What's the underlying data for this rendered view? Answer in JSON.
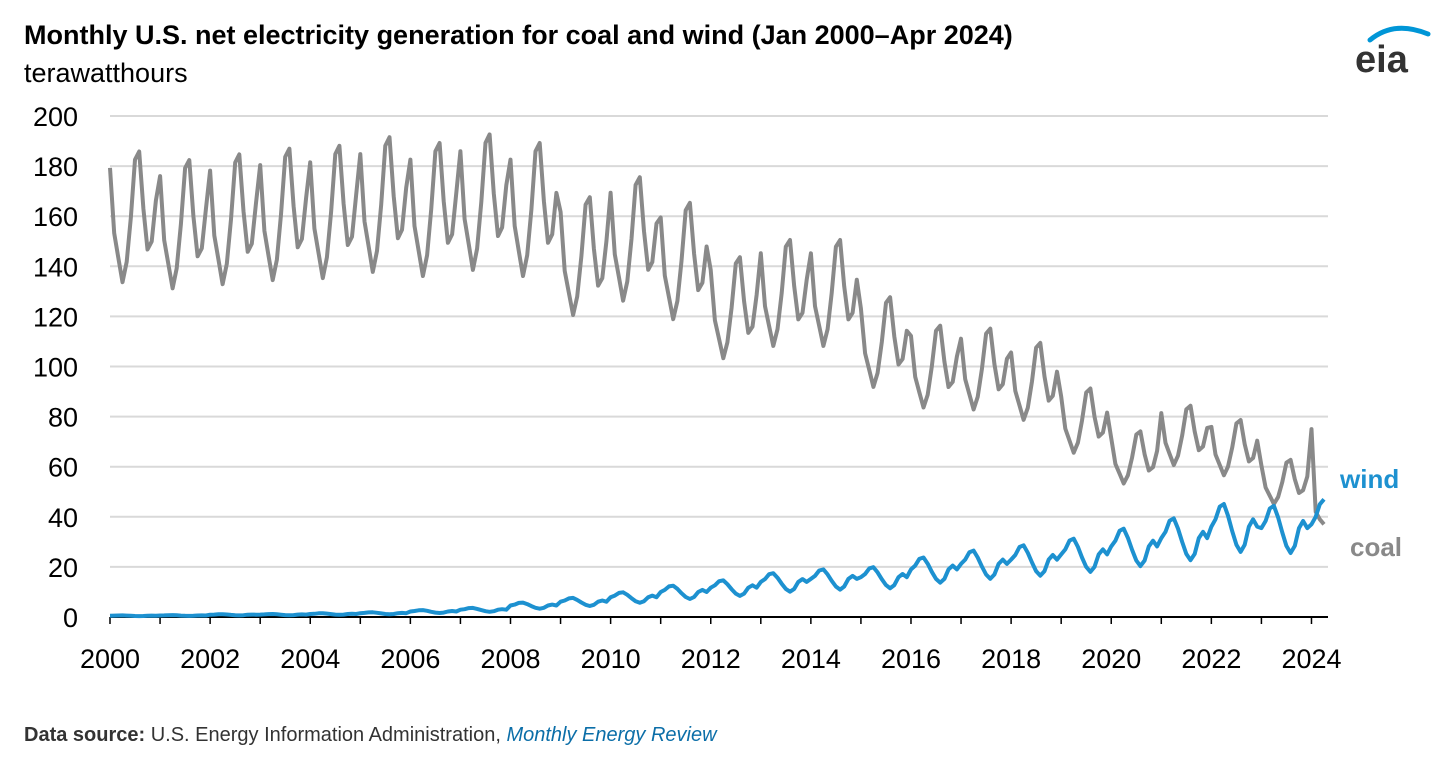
{
  "header": {
    "title": "Monthly U.S. net electricity generation for coal and wind (Jan 2000–Apr 2024)",
    "subtitle": "terawatthours"
  },
  "logo": {
    "text": "eia",
    "color": "#0096d7"
  },
  "footer": {
    "label": "Data source:",
    "org": " U.S. Energy Information Administration, ",
    "publication": "Monthly Energy Review"
  },
  "chart_data": {
    "type": "line",
    "x_unit": "year",
    "xlim": [
      2000,
      2024.33
    ],
    "ylim": [
      0,
      200
    ],
    "yticks": [
      0,
      20,
      40,
      60,
      80,
      100,
      120,
      140,
      160,
      180,
      200
    ],
    "xticks": [
      "2000",
      "2002",
      "2004",
      "2006",
      "2008",
      "2010",
      "2012",
      "2014",
      "2016",
      "2018",
      "2020",
      "2022",
      "2024"
    ],
    "grid": true,
    "legend": "direct labels at line ends (right)",
    "series": [
      {
        "name": "coal",
        "color": "#898989",
        "annual_pattern": [
          1.1,
          0.94,
          0.88,
          0.82,
          0.87,
          0.98,
          1.12,
          1.14,
          1.0,
          0.9,
          0.92,
          1.02
        ],
        "annual_mean": {
          "2000": 163,
          "2001": 160,
          "2002": 162,
          "2003": 164,
          "2004": 165,
          "2005": 168,
          "2006": 166,
          "2007": 169,
          "2008": 166,
          "2009": 147,
          "2010": 154,
          "2011": 145,
          "2012": 126,
          "2013": 132,
          "2014": 132,
          "2015": 112,
          "2016": 102,
          "2017": 101,
          "2018": 96,
          "2019": 80,
          "2020": 65,
          "2021": 74,
          "2022": 69,
          "2023": 55,
          "2024": 50
        },
        "last_points": [
          [
            "2024-01",
            75
          ],
          [
            "2024-02",
            42
          ],
          [
            "2024-03",
            39
          ],
          [
            "2024-04",
            37
          ]
        ]
      },
      {
        "name": "wind",
        "color": "#1d91d0",
        "annual_pattern": [
          1.0,
          1.08,
          1.22,
          1.25,
          1.12,
          0.95,
          0.8,
          0.72,
          0.8,
          1.0,
          1.08,
          1.0
        ],
        "annual_mean": {
          "2000": 0.5,
          "2001": 0.6,
          "2002": 0.9,
          "2003": 0.95,
          "2004": 1.2,
          "2005": 1.5,
          "2006": 2.2,
          "2007": 2.9,
          "2008": 4.6,
          "2009": 6.1,
          "2010": 7.9,
          "2011": 10.0,
          "2012": 11.7,
          "2013": 14.0,
          "2014": 15.2,
          "2015": 15.9,
          "2016": 19.0,
          "2017": 21.2,
          "2018": 22.9,
          "2019": 25.0,
          "2020": 28.2,
          "2021": 31.5,
          "2022": 36.1,
          "2023": 35.5,
          "2024": 43.0
        },
        "last_points": [
          [
            "2024-01",
            37
          ],
          [
            "2024-02",
            40
          ],
          [
            "2024-03",
            45
          ],
          [
            "2024-04",
            47
          ]
        ]
      }
    ]
  }
}
